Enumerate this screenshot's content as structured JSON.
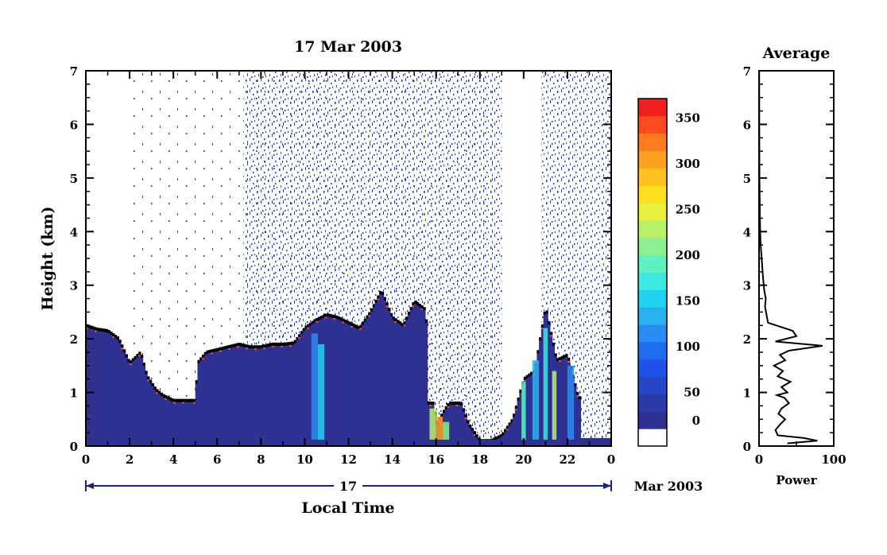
{
  "chart_data": [
    {
      "type": "heatmap",
      "title": "17 Mar 2003",
      "xlabel": "Local Time",
      "ylabel": "Height (km)",
      "xlim": [
        0,
        24
      ],
      "ylim": [
        0,
        7
      ],
      "x_tick_labels": [
        "0",
        "2",
        "4",
        "6",
        "8",
        "10",
        "12",
        "14",
        "16",
        "18",
        "20",
        "22",
        "0"
      ],
      "y_tick_labels": [
        "0",
        "1",
        "2",
        "3",
        "4",
        "5",
        "6",
        "7"
      ],
      "date_bar": {
        "day_label": "17",
        "month_label": "Mar 2003"
      },
      "colorbar": {
        "tick_labels": [
          "0",
          "50",
          "100",
          "150",
          "200",
          "250",
          "300",
          "350"
        ],
        "range": [
          0,
          380
        ],
        "colors": [
          "#ffffff",
          "#2e3192",
          "#2b3aa8",
          "#2646c8",
          "#1f52e8",
          "#1e6cf0",
          "#2a8cf0",
          "#2ab0f0",
          "#20d2f0",
          "#3ee8e0",
          "#5ef0c0",
          "#8cf090",
          "#b8f068",
          "#e8f040",
          "#ffe020",
          "#ffc020",
          "#ffa020",
          "#ff7a20",
          "#ff4a20",
          "#f02020"
        ]
      },
      "boundary_layer_top_km": [
        [
          0,
          2.25
        ],
        [
          0.5,
          2.18
        ],
        [
          1,
          2.15
        ],
        [
          1.5,
          2.0
        ],
        [
          2,
          1.55
        ],
        [
          2.5,
          1.75
        ],
        [
          2.8,
          1.3
        ],
        [
          3.2,
          1.05
        ],
        [
          3.5,
          0.95
        ],
        [
          4,
          0.85
        ],
        [
          4.5,
          0.85
        ],
        [
          5,
          0.85
        ],
        [
          5.1,
          1.55
        ],
        [
          5.5,
          1.75
        ],
        [
          6,
          1.8
        ],
        [
          6.5,
          1.85
        ],
        [
          7,
          1.9
        ],
        [
          7.5,
          1.85
        ],
        [
          8,
          1.85
        ],
        [
          8.5,
          1.9
        ],
        [
          9,
          1.9
        ],
        [
          9.5,
          1.92
        ],
        [
          10,
          2.2
        ],
        [
          10.5,
          2.35
        ],
        [
          11,
          2.45
        ],
        [
          11.5,
          2.4
        ],
        [
          12,
          2.3
        ],
        [
          12.5,
          2.2
        ],
        [
          13,
          2.5
        ],
        [
          13.5,
          2.9
        ],
        [
          14,
          2.4
        ],
        [
          14.5,
          2.25
        ],
        [
          15,
          2.7
        ],
        [
          15.5,
          2.55
        ],
        [
          16,
          0.4
        ],
        [
          16.5,
          0.75
        ],
        [
          17,
          0.95
        ],
        [
          17.5,
          0.4
        ],
        [
          18,
          0.1
        ],
        [
          18.5,
          0.1
        ],
        [
          19,
          0.2
        ],
        [
          19.5,
          0.5
        ],
        [
          20,
          1.25
        ],
        [
          20.5,
          1.4
        ],
        [
          21,
          2.6
        ],
        [
          21.5,
          1.6
        ],
        [
          22,
          1.7
        ],
        [
          22.5,
          0.9
        ]
      ]
    },
    {
      "type": "line",
      "title": "Average",
      "xlabel": "Power",
      "ylabel": "",
      "xlim": [
        0,
        100
      ],
      "ylim": [
        0,
        7
      ],
      "x_tick_labels": [
        "0",
        "100"
      ],
      "y_tick_labels": [
        "0",
        "1",
        "2",
        "3",
        "4",
        "5",
        "6",
        "7"
      ],
      "series": [
        {
          "values": [
            [
              38,
              0.05
            ],
            [
              78,
              0.1
            ],
            [
              60,
              0.15
            ],
            [
              25,
              0.2
            ],
            [
              22,
              0.3
            ],
            [
              28,
              0.4
            ],
            [
              35,
              0.5
            ],
            [
              26,
              0.6
            ],
            [
              30,
              0.7
            ],
            [
              40,
              0.8
            ],
            [
              34,
              0.9
            ],
            [
              24,
              0.95
            ],
            [
              38,
              1.0
            ],
            [
              30,
              1.1
            ],
            [
              42,
              1.2
            ],
            [
              25,
              1.3
            ],
            [
              32,
              1.4
            ],
            [
              20,
              1.5
            ],
            [
              35,
              1.6
            ],
            [
              28,
              1.7
            ],
            [
              40,
              1.78
            ],
            [
              85,
              1.87
            ],
            [
              22,
              1.95
            ],
            [
              50,
              2.05
            ],
            [
              45,
              2.15
            ],
            [
              12,
              2.3
            ],
            [
              10,
              2.45
            ],
            [
              8,
              2.6
            ],
            [
              9,
              2.75
            ],
            [
              7,
              2.9
            ],
            [
              6,
              3.05
            ],
            [
              5,
              3.2
            ],
            [
              4,
              3.4
            ],
            [
              3,
              3.6
            ],
            [
              2,
              3.8
            ],
            [
              1.5,
              4.0
            ],
            [
              1,
              4.5
            ],
            [
              0.5,
              5.0
            ],
            [
              0.3,
              6.0
            ],
            [
              0.2,
              7.0
            ]
          ]
        }
      ]
    }
  ]
}
